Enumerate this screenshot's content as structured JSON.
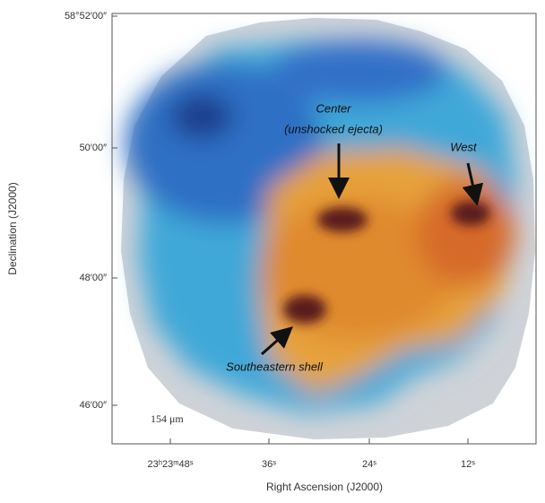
{
  "figure": {
    "y_axis_label": "Declination (J2000)",
    "x_axis_label": "Right Ascension (J2000)",
    "y_tick_labels": [
      "58°52′00″",
      "50′00″",
      "48′00″",
      "46′00″"
    ],
    "x_tick_labels": [
      "23ʰ23ᵐ48ˢ",
      "36ˢ",
      "24ˢ",
      "12ˢ"
    ],
    "annotations": [
      "Center",
      "(unshocked ejecta)",
      "West",
      "Southeastern shell"
    ],
    "scale_label": "154 μm"
  }
}
